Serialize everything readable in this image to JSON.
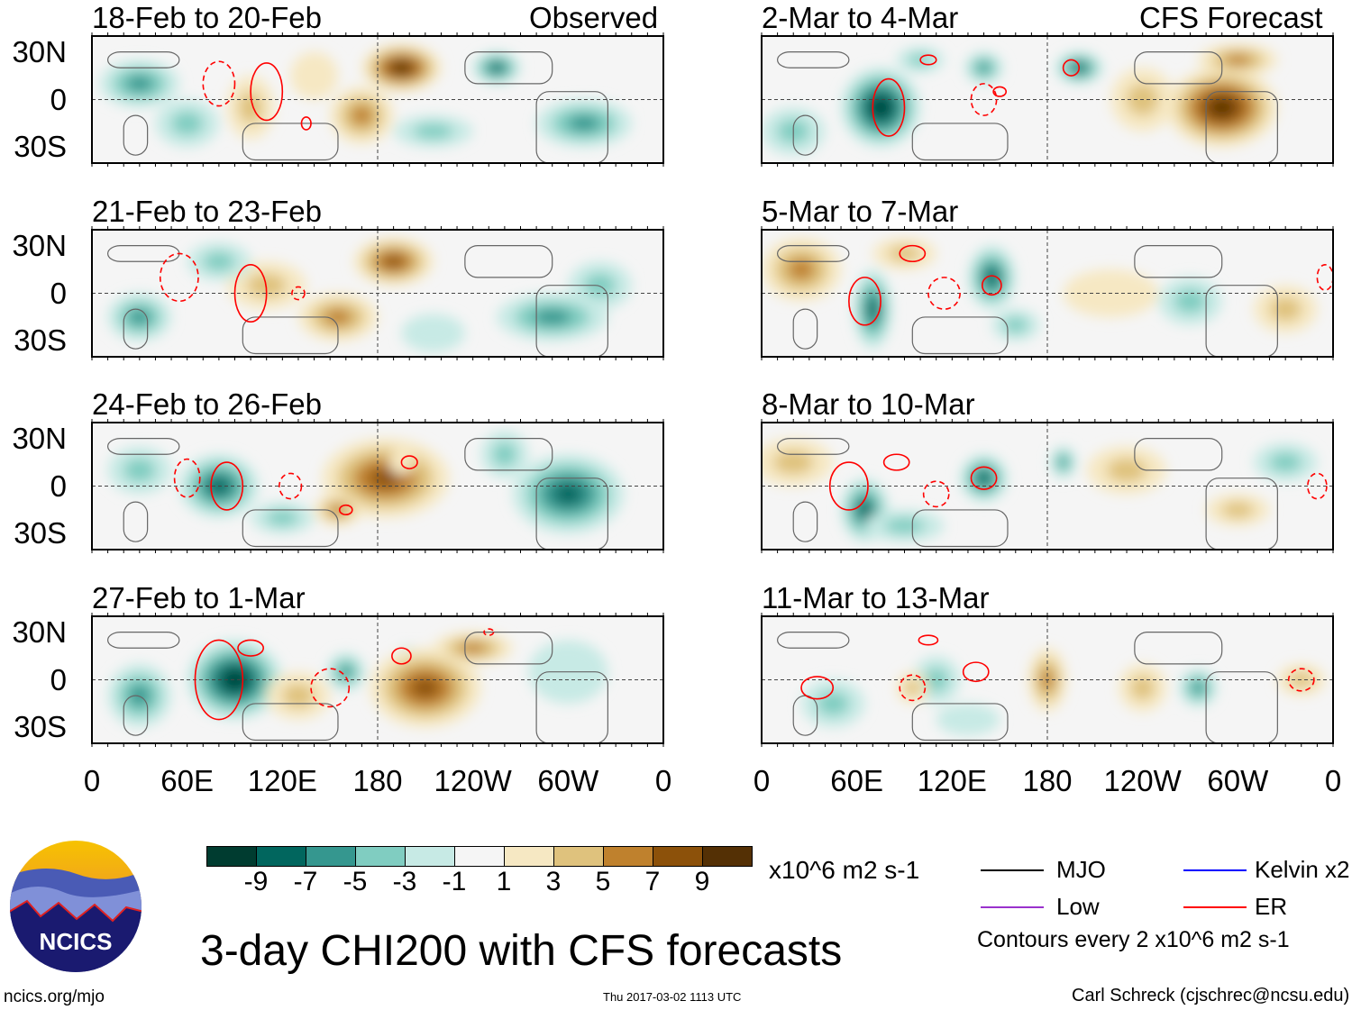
{
  "headers": {
    "observed": "Observed",
    "forecast": "CFS Forecast"
  },
  "lat_labels": [
    "30N",
    "0",
    "30S"
  ],
  "lon_labels": [
    "0",
    "60E",
    "120E",
    "180",
    "120W",
    "60W",
    "0"
  ],
  "colorbar": {
    "colors": [
      "#003c30",
      "#01665e",
      "#35978f",
      "#80cdc1",
      "#c7eae5",
      "#f5f5f5",
      "#f6e8c3",
      "#dfc27d",
      "#bf812d",
      "#8c510a",
      "#543005"
    ],
    "labels": [
      "-9",
      "-7",
      "-5",
      "-3",
      "-1",
      "1",
      "3",
      "5",
      "7",
      "9"
    ],
    "units": "x10^6 m2 s-1"
  },
  "legend": {
    "items": [
      {
        "label": "MJO",
        "color": "#000000"
      },
      {
        "label": "Kelvin x2",
        "color": "#0000ff"
      },
      {
        "label": "Low",
        "color": "#9a32cd"
      },
      {
        "label": "ER",
        "color": "#ff0000"
      }
    ],
    "note": "Contours every 2 x10^6 m2 s-1"
  },
  "title": "3-day CHI200 with CFS forecasts",
  "logo": {
    "text": "NCICS"
  },
  "footer": {
    "url": "ncics.org/mjo",
    "timestamp": "Thu 2017-03-02 1113 UTC",
    "author": "Carl Schreck (cjschrec@ncsu.edu)"
  },
  "chart_data": {
    "type": "heatmap",
    "variable": "CHI200 anomaly",
    "units": "x10^6 m2 s-1",
    "xlim": [
      0,
      360
    ],
    "ylim": [
      -40,
      40
    ],
    "panels": [
      {
        "title": "18-Feb to 20-Feb",
        "blobs": [
          [
            195,
            20,
            25,
            15,
            9
          ],
          [
            170,
            -10,
            20,
            18,
            5
          ],
          [
            100,
            -5,
            15,
            20,
            3
          ],
          [
            30,
            10,
            25,
            15,
            -5
          ],
          [
            60,
            -15,
            20,
            15,
            -3
          ],
          [
            255,
            20,
            15,
            10,
            -7
          ],
          [
            310,
            -15,
            30,
            15,
            -5
          ],
          [
            215,
            -20,
            25,
            10,
            -3
          ],
          [
            140,
            15,
            15,
            15,
            1
          ]
        ],
        "contours": [
          [
            110,
            5,
            10,
            18,
            0
          ],
          [
            80,
            10,
            10,
            14,
            1
          ],
          [
            135,
            -15,
            3,
            4,
            0
          ]
        ]
      },
      {
        "title": "21-Feb to 23-Feb",
        "blobs": [
          [
            190,
            20,
            25,
            15,
            7
          ],
          [
            155,
            -15,
            25,
            15,
            5
          ],
          [
            110,
            5,
            25,
            15,
            3
          ],
          [
            30,
            -15,
            20,
            15,
            -5
          ],
          [
            80,
            20,
            20,
            12,
            -3
          ],
          [
            290,
            -15,
            35,
            15,
            -5
          ],
          [
            320,
            5,
            20,
            15,
            -3
          ],
          [
            215,
            -25,
            20,
            12,
            -1
          ]
        ],
        "contours": [
          [
            100,
            0,
            10,
            18,
            0
          ],
          [
            55,
            10,
            12,
            15,
            1
          ],
          [
            130,
            0,
            4,
            4,
            1
          ]
        ]
      },
      {
        "title": "24-Feb to 26-Feb",
        "blobs": [
          [
            185,
            5,
            40,
            25,
            7
          ],
          [
            155,
            -15,
            15,
            10,
            5
          ],
          [
            195,
            15,
            8,
            8,
            1
          ],
          [
            80,
            0,
            25,
            20,
            -7
          ],
          [
            30,
            10,
            20,
            15,
            -3
          ],
          [
            300,
            -5,
            35,
            25,
            -7
          ],
          [
            260,
            20,
            15,
            15,
            -3
          ],
          [
            120,
            -20,
            20,
            10,
            -3
          ]
        ],
        "contours": [
          [
            85,
            0,
            10,
            15,
            0
          ],
          [
            60,
            5,
            8,
            12,
            1
          ],
          [
            125,
            0,
            7,
            8,
            1
          ],
          [
            160,
            -15,
            4,
            3,
            0
          ],
          [
            200,
            15,
            5,
            4,
            0
          ]
        ]
      },
      {
        "title": "27-Feb to 1-Mar",
        "blobs": [
          [
            90,
            0,
            30,
            25,
            -9
          ],
          [
            160,
            5,
            12,
            12,
            -5
          ],
          [
            200,
            15,
            8,
            6,
            -7
          ],
          [
            210,
            -5,
            35,
            25,
            7
          ],
          [
            240,
            20,
            25,
            10,
            5
          ],
          [
            30,
            -10,
            20,
            20,
            -5
          ],
          [
            130,
            -10,
            20,
            15,
            3
          ],
          [
            300,
            5,
            25,
            20,
            -1
          ]
        ],
        "contours": [
          [
            80,
            0,
            15,
            25,
            0
          ],
          [
            150,
            -5,
            12,
            12,
            1
          ],
          [
            195,
            15,
            6,
            5,
            0
          ],
          [
            100,
            20,
            8,
            5,
            0
          ],
          [
            250,
            30,
            3,
            2,
            1
          ]
        ]
      },
      {
        "title": "2-Mar to 4-Mar",
        "blobs": [
          [
            75,
            -5,
            25,
            25,
            -9
          ],
          [
            200,
            20,
            15,
            10,
            -7
          ],
          [
            140,
            20,
            12,
            10,
            -5
          ],
          [
            100,
            25,
            15,
            8,
            -3
          ],
          [
            290,
            -5,
            35,
            25,
            9
          ],
          [
            300,
            25,
            25,
            10,
            5
          ],
          [
            240,
            0,
            20,
            20,
            3
          ],
          [
            20,
            -20,
            20,
            15,
            -3
          ]
        ],
        "contours": [
          [
            80,
            -5,
            10,
            18,
            0
          ],
          [
            195,
            20,
            5,
            5,
            0
          ],
          [
            140,
            0,
            8,
            10,
            1
          ],
          [
            105,
            25,
            5,
            3,
            0
          ],
          [
            150,
            5,
            4,
            3,
            0
          ]
        ]
      },
      {
        "title": "5-Mar to 7-Mar",
        "blobs": [
          [
            70,
            -10,
            12,
            25,
            -7
          ],
          [
            145,
            10,
            15,
            20,
            -7
          ],
          [
            25,
            15,
            25,
            20,
            5
          ],
          [
            90,
            25,
            20,
            10,
            3
          ],
          [
            270,
            -5,
            20,
            15,
            -3
          ],
          [
            330,
            -10,
            20,
            15,
            3
          ],
          [
            220,
            0,
            30,
            15,
            1
          ],
          [
            160,
            -20,
            15,
            10,
            -3
          ]
        ],
        "contours": [
          [
            65,
            -5,
            10,
            15,
            0
          ],
          [
            145,
            5,
            6,
            6,
            0
          ],
          [
            95,
            25,
            8,
            5,
            0
          ],
          [
            115,
            0,
            10,
            10,
            1
          ],
          [
            355,
            10,
            5,
            8,
            1
          ]
        ]
      },
      {
        "title": "8-Mar to 10-Mar",
        "blobs": [
          [
            65,
            -15,
            15,
            20,
            -7
          ],
          [
            140,
            5,
            15,
            15,
            -7
          ],
          [
            190,
            15,
            8,
            10,
            -5
          ],
          [
            230,
            10,
            25,
            15,
            3
          ],
          [
            330,
            15,
            20,
            12,
            -3
          ],
          [
            300,
            -15,
            20,
            10,
            3
          ],
          [
            20,
            15,
            25,
            15,
            3
          ],
          [
            90,
            -25,
            25,
            10,
            -3
          ]
        ],
        "contours": [
          [
            55,
            0,
            12,
            15,
            0
          ],
          [
            140,
            5,
            8,
            7,
            0
          ],
          [
            85,
            15,
            8,
            5,
            0
          ],
          [
            110,
            -5,
            8,
            8,
            1
          ],
          [
            350,
            0,
            6,
            8,
            1
          ]
        ]
      },
      {
        "title": "11-Mar to 13-Mar",
        "blobs": [
          [
            180,
            0,
            12,
            20,
            5
          ],
          [
            240,
            -5,
            15,
            15,
            3
          ],
          [
            340,
            0,
            15,
            10,
            3
          ],
          [
            275,
            -5,
            12,
            12,
            -5
          ],
          [
            110,
            0,
            15,
            15,
            -3
          ],
          [
            45,
            -15,
            20,
            15,
            -3
          ],
          [
            95,
            -5,
            10,
            10,
            3
          ],
          [
            130,
            -25,
            20,
            10,
            -1
          ]
        ],
        "contours": [
          [
            35,
            -5,
            10,
            7,
            0
          ],
          [
            95,
            -5,
            8,
            8,
            1
          ],
          [
            135,
            5,
            8,
            6,
            0
          ],
          [
            105,
            25,
            6,
            3,
            0
          ],
          [
            340,
            0,
            8,
            7,
            1
          ]
        ]
      }
    ]
  }
}
